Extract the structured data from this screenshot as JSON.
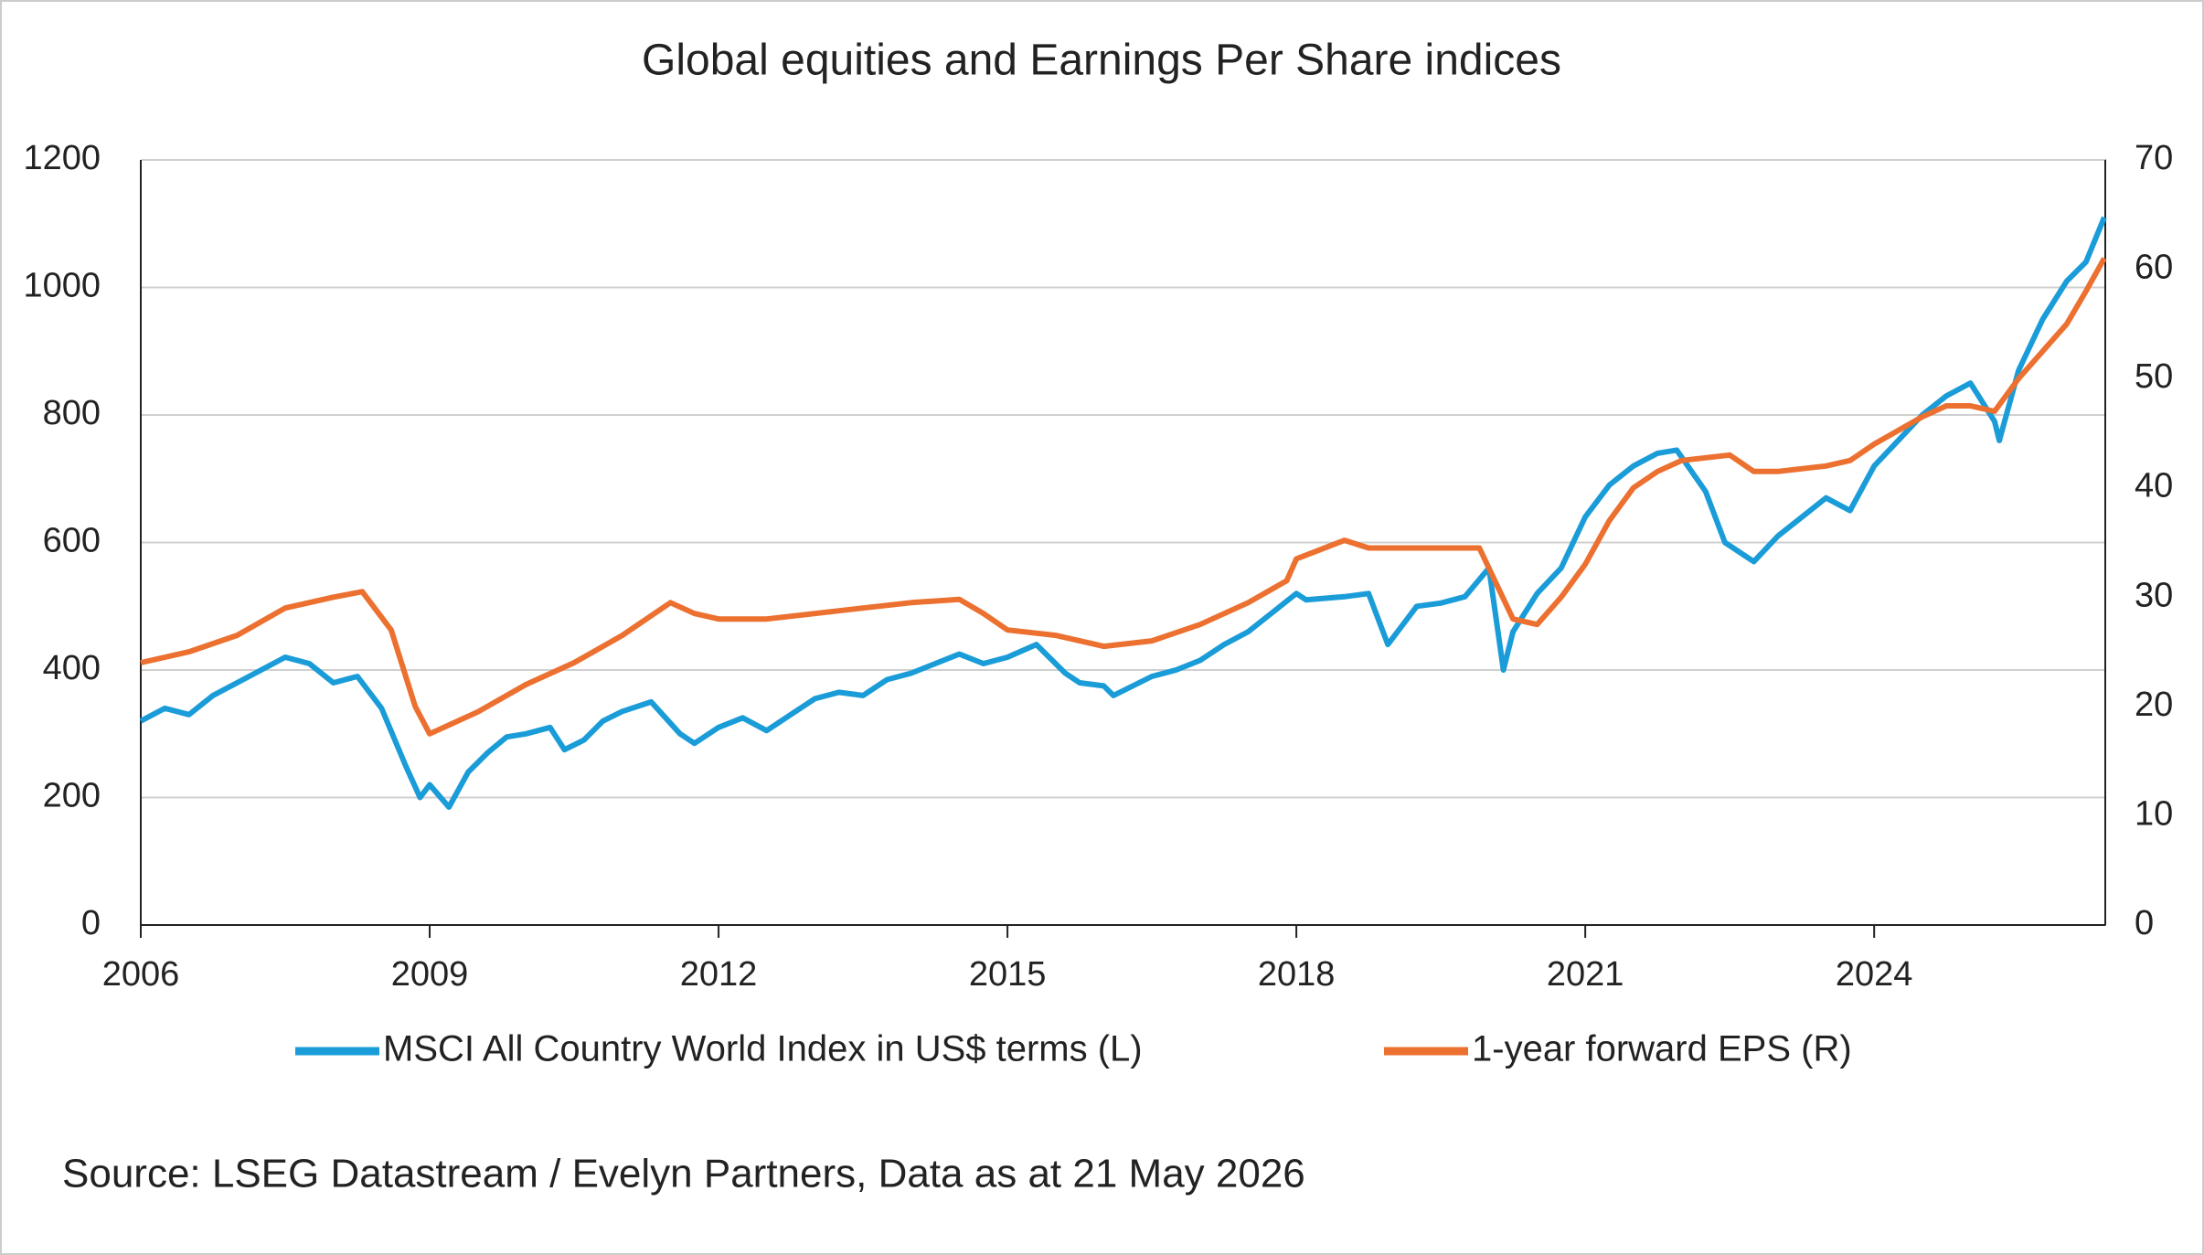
{
  "chart_data": {
    "type": "line",
    "title": "Global equities and Earnings Per Share indices",
    "source": "Source: LSEG Datastream / Evelyn Partners, Data as at 21 May 2026",
    "xlim": [
      2006,
      2026.4
    ],
    "xticks": [
      2006,
      2009,
      2012,
      2015,
      2018,
      2021,
      2024
    ],
    "ylim": [
      0,
      1200
    ],
    "yticks": [
      0,
      200,
      400,
      600,
      800,
      1000,
      1200
    ],
    "y2lim": [
      0,
      70
    ],
    "y2ticks": [
      0,
      10,
      20,
      30,
      40,
      50,
      60,
      70
    ],
    "grid": true,
    "legend": "bottom",
    "series": [
      {
        "name": "MSCI All Country World Index in US$ terms (L)",
        "color": "#1a9cd8",
        "axis": "y",
        "x": [
          2006.0,
          2006.25,
          2006.5,
          2006.75,
          2007.0,
          2007.25,
          2007.5,
          2007.75,
          2008.0,
          2008.25,
          2008.5,
          2008.75,
          2008.9,
          2009.0,
          2009.2,
          2009.4,
          2009.6,
          2009.8,
          2010.0,
          2010.25,
          2010.4,
          2010.6,
          2010.8,
          2011.0,
          2011.3,
          2011.6,
          2011.75,
          2012.0,
          2012.25,
          2012.5,
          2012.75,
          2013.0,
          2013.25,
          2013.5,
          2013.75,
          2014.0,
          2014.25,
          2014.5,
          2014.75,
          2015.0,
          2015.3,
          2015.6,
          2015.75,
          2016.0,
          2016.1,
          2016.5,
          2016.75,
          2017.0,
          2017.25,
          2017.5,
          2017.75,
          2018.0,
          2018.1,
          2018.5,
          2018.75,
          2018.95,
          2019.25,
          2019.5,
          2019.75,
          2020.0,
          2020.15,
          2020.25,
          2020.5,
          2020.75,
          2021.0,
          2021.25,
          2021.5,
          2021.75,
          2021.95,
          2022.25,
          2022.45,
          2022.75,
          2023.0,
          2023.25,
          2023.5,
          2023.75,
          2024.0,
          2024.25,
          2024.5,
          2024.75,
          2025.0,
          2025.25,
          2025.3,
          2025.5,
          2025.75,
          2026.0,
          2026.2,
          2026.39
        ],
        "values": [
          320,
          340,
          330,
          360,
          380,
          400,
          420,
          410,
          380,
          390,
          340,
          250,
          200,
          220,
          185,
          240,
          270,
          295,
          300,
          310,
          275,
          290,
          320,
          335,
          350,
          300,
          285,
          310,
          325,
          305,
          330,
          355,
          365,
          360,
          385,
          395,
          410,
          425,
          410,
          420,
          440,
          395,
          380,
          375,
          360,
          390,
          400,
          415,
          440,
          460,
          490,
          520,
          510,
          515,
          520,
          440,
          500,
          505,
          515,
          560,
          400,
          460,
          520,
          560,
          640,
          690,
          720,
          740,
          745,
          680,
          600,
          570,
          610,
          640,
          670,
          650,
          720,
          760,
          800,
          830,
          850,
          790,
          760,
          870,
          950,
          1010,
          1040,
          1110
        ]
      },
      {
        "name": "1-year forward EPS (R)",
        "color": "#ec7030",
        "axis": "y2",
        "x": [
          2006.0,
          2006.5,
          2007.0,
          2007.5,
          2008.0,
          2008.3,
          2008.6,
          2008.85,
          2009.0,
          2009.5,
          2010.0,
          2010.5,
          2011.0,
          2011.5,
          2011.75,
          2012.0,
          2012.5,
          2013.0,
          2013.5,
          2014.0,
          2014.5,
          2014.75,
          2015.0,
          2015.5,
          2016.0,
          2016.5,
          2017.0,
          2017.5,
          2017.9,
          2018.0,
          2018.5,
          2018.75,
          2019.0,
          2019.5,
          2019.9,
          2020.25,
          2020.5,
          2020.75,
          2021.0,
          2021.25,
          2021.5,
          2021.75,
          2022.0,
          2022.5,
          2022.75,
          2023.0,
          2023.5,
          2023.75,
          2024.0,
          2024.5,
          2024.75,
          2025.0,
          2025.25,
          2025.5,
          2025.75,
          2026.0,
          2026.2,
          2026.39
        ],
        "values": [
          24,
          25,
          26.5,
          29,
          30,
          30.5,
          27,
          20,
          17.5,
          19.5,
          22,
          24,
          26.5,
          29.5,
          28.5,
          28,
          28,
          28.5,
          29,
          29.5,
          29.8,
          28.5,
          27,
          26.5,
          25.5,
          26,
          27.5,
          29.5,
          31.5,
          33.5,
          35.2,
          34.5,
          34.5,
          34.5,
          34.5,
          28,
          27.5,
          30,
          33,
          37,
          40,
          41.5,
          42.5,
          43,
          41.5,
          41.5,
          42,
          42.5,
          44,
          46.5,
          47.5,
          47.5,
          47,
          50,
          52.5,
          55,
          58,
          61
        ]
      }
    ]
  }
}
